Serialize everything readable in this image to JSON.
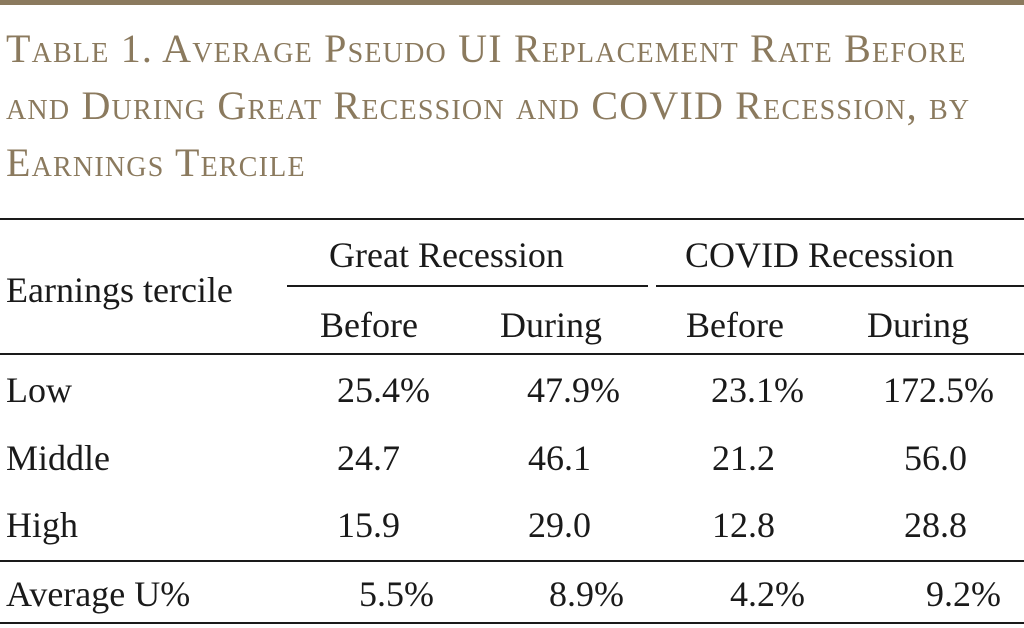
{
  "table": {
    "title": "Table 1. Average Pseudo UI Replacement Rate Before and During Great Recession and COVID Recession, by Earnings Tercile",
    "row_header_label": "Earnings tercile",
    "groups": [
      "Great Recession",
      "COVID Recession"
    ],
    "subheaders": [
      "Before",
      "During",
      "Before",
      "During"
    ],
    "rows": [
      {
        "label": "Low",
        "values": [
          "25.4%",
          "47.9%",
          "23.1%",
          "172.5%"
        ]
      },
      {
        "label": "Middle",
        "values": [
          "24.7",
          "46.1",
          "21.2",
          "56.0"
        ]
      },
      {
        "label": "High",
        "values": [
          "15.9",
          "29.0",
          "12.8",
          "28.8"
        ]
      }
    ],
    "footer_row": {
      "label": "Average U%",
      "values": [
        "5.5%",
        "8.9%",
        "4.2%",
        "9.2%"
      ]
    }
  },
  "colors": {
    "accent": "#8b7a5e",
    "text": "#1a1a1a",
    "background": "#ffffff"
  }
}
